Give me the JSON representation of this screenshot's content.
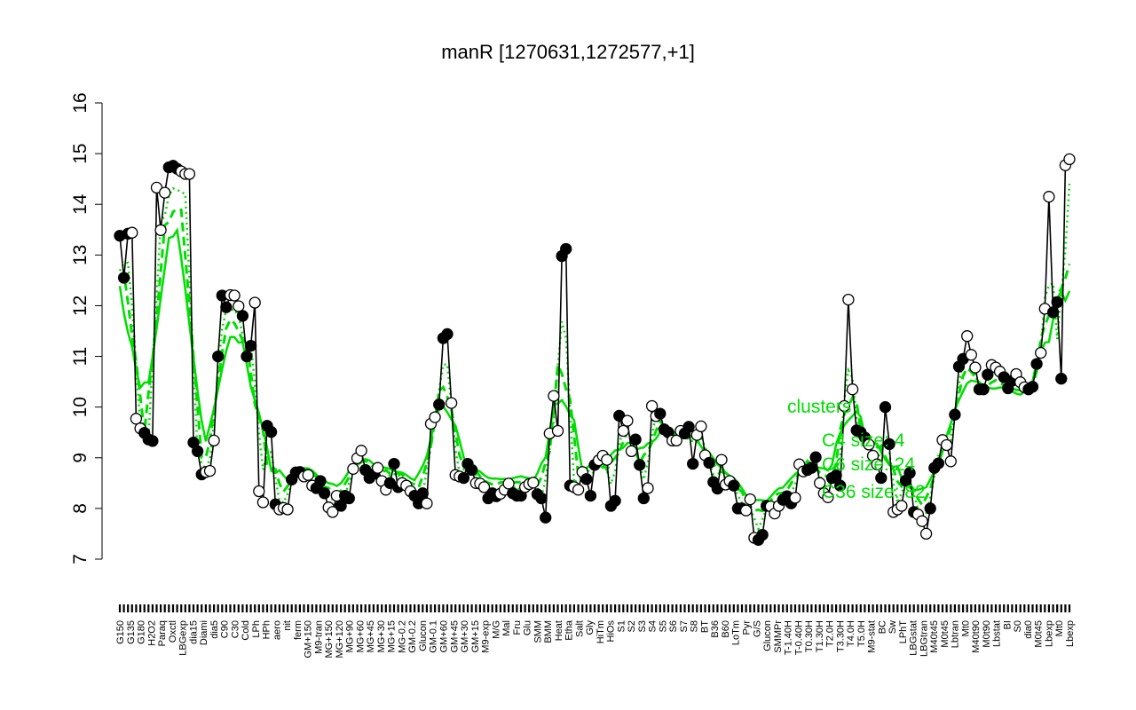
{
  "chart_data": {
    "type": "line",
    "title": "manR [1270631,1272577,+1]",
    "xlabel": "",
    "ylabel": "",
    "ylim": [
      7,
      16
    ],
    "yticks": [
      "7",
      "8",
      "9",
      "10",
      "11",
      "12",
      "13",
      "14",
      "15",
      "16"
    ],
    "x_tick_labels": [
      "G150",
      "G135",
      "G180",
      "H2O2",
      "Paraq",
      "Oxctl",
      "LBGexp",
      "dia15",
      "Diami",
      "dia5",
      "C90",
      "C30",
      "Cold",
      "LPh",
      "HPh",
      "aero",
      "nit",
      "ferm",
      "GM+150",
      "M9-tran",
      "MG+150",
      "MG+120",
      "MG+90",
      "MG+60",
      "MG+45",
      "MG+30",
      "MG+15",
      "MG-0.2",
      "GM-0.2",
      "Glucon",
      "GM-0.1",
      "GM+60",
      "GM+45",
      "GM+30",
      "GM+15",
      "M9-exp",
      "M/G",
      "Mal",
      "Fru",
      "Glu",
      "SMM",
      "BMM",
      "Heat",
      "Etha",
      "Salt",
      "Gly",
      "HiTm",
      "HiOs",
      "S1",
      "S2",
      "S3",
      "S4",
      "S5",
      "S6",
      "S7",
      "S8",
      "BT",
      "B36",
      "B60",
      "LoTm",
      "Pyr",
      "G/S",
      "Glucon",
      "SMMPr",
      "T-1.40H",
      "T-0.40H",
      "T0.30H",
      "T1.30H",
      "T2.0H",
      "T3.30H",
      "T4.0H",
      "T5.0H",
      "M9-stat",
      "BC",
      "Sw",
      "LPhT",
      "LBGstat",
      "LBGtran",
      "M40t45",
      "M0t45",
      "Lbtran",
      "Mt0",
      "M40t90",
      "M0t90",
      "Lbstat",
      "BI",
      "S0",
      "dia0",
      "M0t45",
      "Lbexp",
      "Mt0",
      "Lbexp"
    ],
    "series": [
      {
        "values": [
          13.38,
          12.55,
          13.42,
          13.44,
          9.77,
          9.58,
          9.49,
          9.36,
          9.33,
          14.33,
          13.49,
          14.23,
          14.73,
          14.76,
          14.7,
          14.65,
          14.6,
          14.6,
          9.3,
          9.13,
          8.67,
          8.72,
          8.74,
          9.34,
          11.0,
          12.2,
          11.97,
          12.21,
          12.2,
          11.99,
          11.8,
          11.0,
          11.21,
          12.06,
          8.34,
          8.12,
          9.63,
          9.51,
          8.08,
          7.98,
          8.01,
          7.98,
          8.57,
          8.71,
          8.72,
          8.63,
          8.66,
          8.45,
          8.4,
          8.54,
          8.3,
          8.02,
          7.93,
          8.25,
          8.05,
          8.25,
          8.2,
          8.78,
          8.99,
          9.14,
          8.76,
          8.6,
          8.68,
          8.8,
          8.54,
          8.37,
          8.5,
          8.88,
          8.42,
          8.5,
          8.45,
          8.34,
          8.25,
          8.1,
          8.3,
          8.1,
          9.67,
          9.8,
          10.05,
          11.36,
          11.44,
          10.08,
          8.66,
          8.63,
          8.6,
          8.88,
          8.76,
          8.5,
          8.49,
          8.42,
          8.2,
          8.3,
          8.24,
          8.29,
          8.37,
          8.49,
          8.3,
          8.25,
          8.25,
          8.42,
          8.48,
          8.51,
          8.28,
          8.2,
          7.82,
          9.48,
          10.22,
          9.53,
          12.98,
          13.12,
          8.45,
          8.42,
          8.37,
          8.72,
          8.58,
          8.25,
          8.86,
          8.95,
          9.04,
          8.96,
          8.05,
          8.15,
          9.83,
          9.53,
          9.73,
          9.13,
          9.36,
          8.86,
          8.2,
          8.4,
          10.02,
          9.82,
          9.87,
          9.56,
          9.5,
          9.34,
          9.34,
          9.53,
          9.48,
          9.61,
          8.88,
          9.45,
          9.62,
          9.05,
          8.9,
          8.52,
          8.39,
          8.96,
          8.47,
          8.54,
          8.45,
          8.0,
          8.0,
          7.96,
          8.18,
          7.42,
          7.38,
          7.48,
          8.05,
          8.04,
          7.9,
          8.05,
          8.17,
          8.24,
          8.1,
          8.21,
          8.87,
          8.73,
          8.76,
          8.8,
          9.01,
          8.5,
          8.3,
          8.22,
          8.6,
          8.65,
          8.45,
          10.02,
          12.12,
          10.35,
          9.54,
          9.5,
          9.4,
          9.26,
          9.04,
          8.87,
          8.6,
          10.0,
          9.27,
          7.93,
          7.98,
          8.05,
          8.55,
          8.7,
          7.93,
          7.88,
          7.75,
          7.5,
          8.0,
          8.8,
          8.89,
          9.35,
          9.25,
          8.93,
          9.85,
          10.8,
          10.95,
          11.4,
          11.03,
          10.78,
          10.35,
          10.35,
          10.64,
          10.83,
          10.78,
          10.7,
          10.59,
          10.37,
          10.52,
          10.65,
          10.49,
          10.39,
          10.35,
          10.4,
          10.85,
          11.07,
          11.94,
          14.15,
          11.87,
          12.07,
          10.56,
          14.77,
          14.89
        ]
      }
    ],
    "legend": {
      "placement": "right",
      "entries": [
        "clusters",
        "C4  size: 4",
        "C6  size: 24",
        "C36  size: 82"
      ]
    },
    "grid": false,
    "colors": {
      "line": "#000000",
      "cluster": "#00dd00"
    }
  }
}
